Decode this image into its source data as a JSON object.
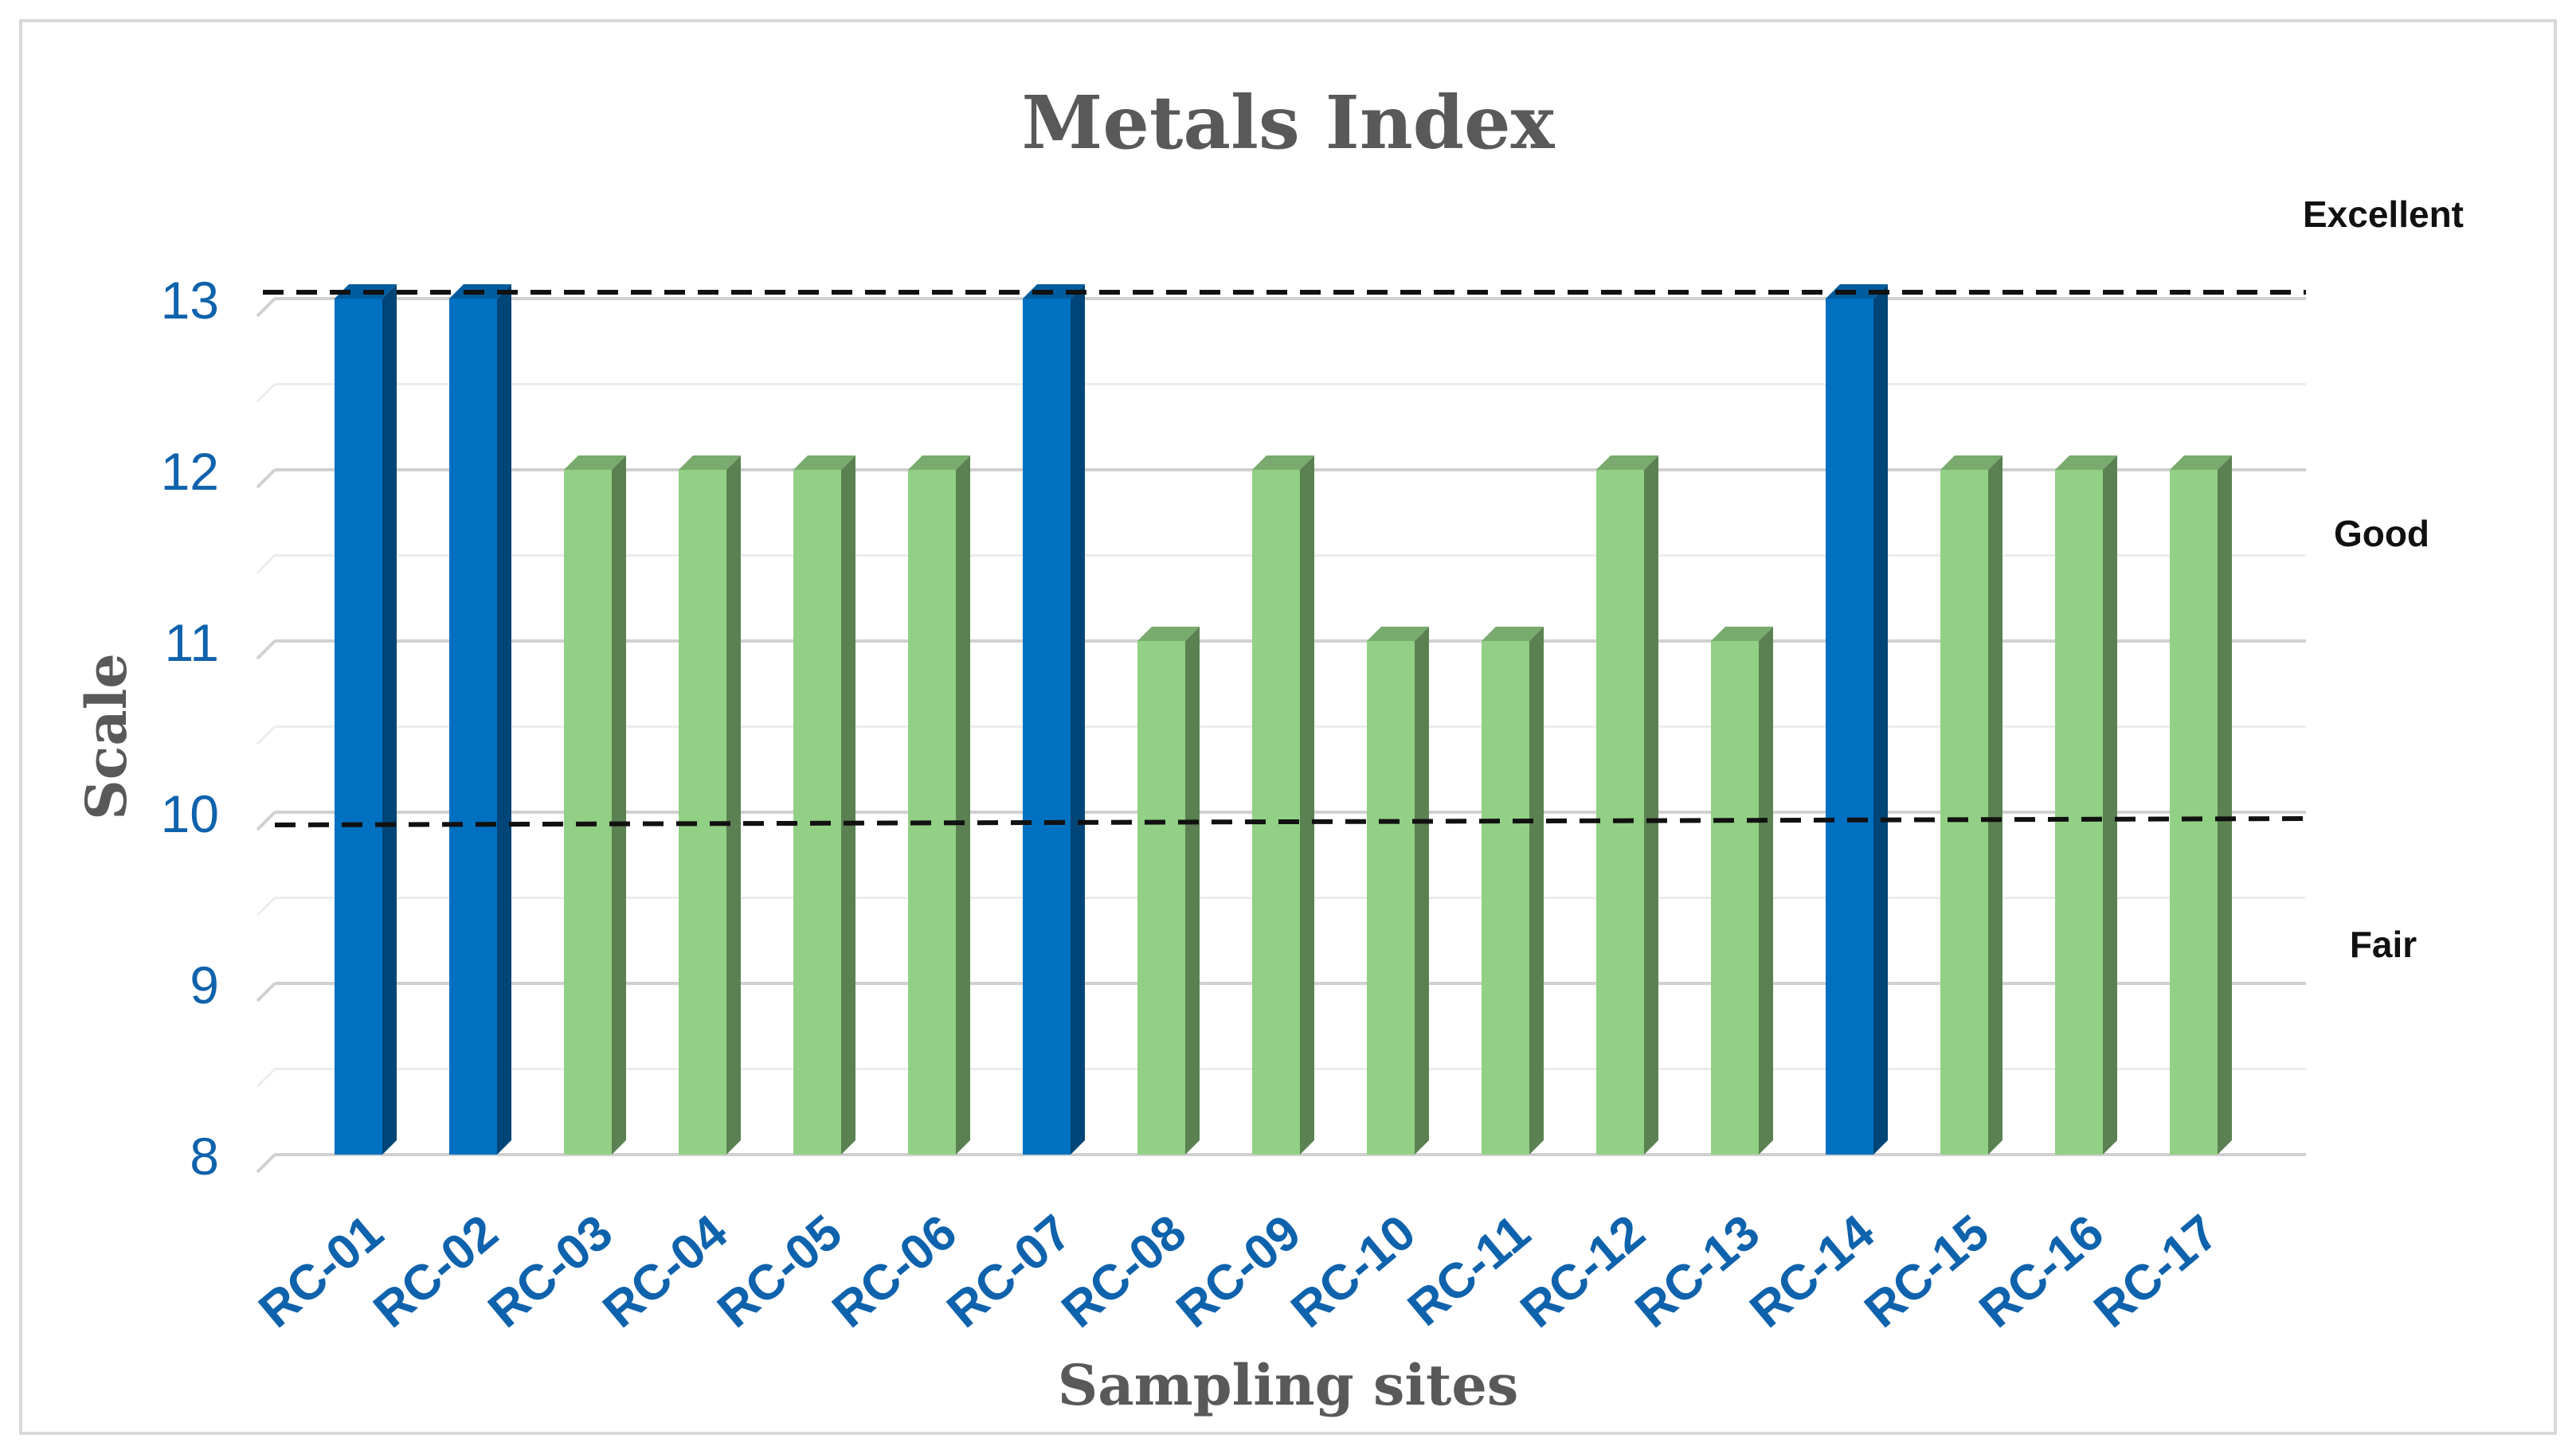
{
  "chart_data": {
    "type": "bar",
    "title": "Metals Index",
    "xlabel": "Sampling sites",
    "ylabel": "Scale",
    "ylim": [
      8,
      13
    ],
    "yticks": [
      8,
      9,
      10,
      11,
      12,
      13
    ],
    "grid": true,
    "categories": [
      "RC-01",
      "RC-02",
      "RC-03",
      "RC-04",
      "RC-05",
      "RC-06",
      "RC-07",
      "RC-08",
      "RC-09",
      "RC-10",
      "RC-11",
      "RC-12",
      "RC-13",
      "RC-14",
      "RC-15",
      "RC-16",
      "RC-17"
    ],
    "values": [
      13,
      13,
      12,
      12,
      12,
      12,
      13,
      11,
      12,
      11,
      11,
      12,
      11,
      13,
      12,
      12,
      12
    ],
    "bar_colors": [
      "#0070c0",
      "#0070c0",
      "#92d085",
      "#92d085",
      "#92d085",
      "#92d085",
      "#0070c0",
      "#92d085",
      "#92d085",
      "#92d085",
      "#92d085",
      "#92d085",
      "#92d085",
      "#0070c0",
      "#92d085",
      "#92d085",
      "#92d085"
    ],
    "reference_lines": [
      {
        "value": 13,
        "style": "dashed",
        "color": "#111111"
      },
      {
        "value": 10,
        "style": "dashed",
        "color": "#111111"
      }
    ],
    "zone_labels": [
      "Excellent",
      "Good",
      "Fair"
    ]
  },
  "colors": {
    "excellent_bar": "#0070c0",
    "good_bar": "#92d085",
    "tick_text": "#0f62ac",
    "title_text": "#595959",
    "grid": "#d9d9d9"
  }
}
